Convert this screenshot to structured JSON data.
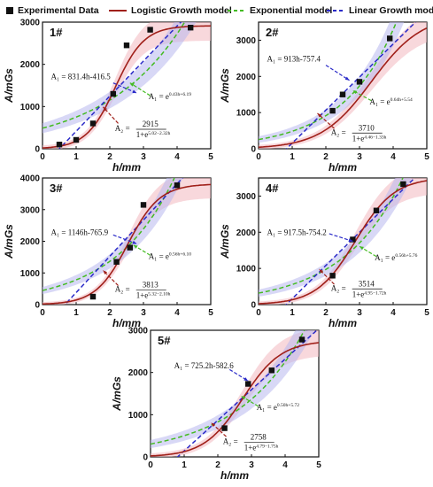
{
  "legend": {
    "experimental": "Experimental Data",
    "logistic": "Logistic Growth model",
    "exponential": "Exponential model",
    "linear": "Linear Growth model"
  },
  "colors": {
    "logistic": "#a0201a",
    "exponential": "#44bb22",
    "linear": "#2a2ac8",
    "points": "#111111",
    "band_red": "#f2b8c0",
    "band_blue": "#b8b8ee"
  },
  "chart_data": [
    {
      "type": "scatter",
      "panel": "1#",
      "xlabel": "h/mm",
      "ylabel": "A/mGs",
      "xlim": [
        0,
        5
      ],
      "ylim": [
        0,
        3000
      ],
      "xticks": [
        0,
        1,
        2,
        3,
        4,
        5
      ],
      "yticks": [
        0,
        1000,
        2000,
        3000
      ],
      "points": [
        [
          0.5,
          100
        ],
        [
          1.0,
          210
        ],
        [
          1.5,
          600
        ],
        [
          2.1,
          1300
        ],
        [
          2.5,
          2450
        ],
        [
          3.2,
          2820
        ],
        [
          4.4,
          2870
        ]
      ],
      "linear_eq": "A₁ = 831.4h-416.5",
      "linear": {
        "slope": 831.4,
        "intercept": -416.5
      },
      "exp_eq_base": "A₁ = e",
      "exp_eq_exp": "0.43h+6.19",
      "exponential": {
        "a": 0.43,
        "b": 6.19
      },
      "log_eq_lhs": "A₂ =",
      "log_eq_num": "2915",
      "log_eq_den": "1+e",
      "log_eq_den_exp": "5.02−2.32h",
      "logistic": {
        "K": 2915,
        "a": 5.02,
        "b": 2.32
      }
    },
    {
      "type": "scatter",
      "panel": "2#",
      "xlabel": "h/mm",
      "ylabel": "A/mGs",
      "xlim": [
        0,
        5
      ],
      "ylim": [
        0,
        3500
      ],
      "xticks": [
        0,
        1,
        2,
        3,
        4,
        5
      ],
      "yticks": [
        0,
        1000,
        2000,
        3000
      ],
      "points": [
        [
          0.5,
          -270
        ],
        [
          2.2,
          1050
        ],
        [
          2.5,
          1500
        ],
        [
          3.0,
          1850
        ],
        [
          3.9,
          3050
        ]
      ],
      "linear_eq": "A₁ = 913h-757.4",
      "linear": {
        "slope": 913,
        "intercept": -757.4
      },
      "exp_eq_base": "A₁ = e",
      "exp_eq_exp": "0.64h+5.54",
      "exponential": {
        "a": 0.64,
        "b": 5.54
      },
      "log_eq_lhs": "A₂ =",
      "log_eq_num": "3710",
      "log_eq_den": "1+e",
      "log_eq_den_exp": "4.46−1.33h",
      "logistic": {
        "K": 3710,
        "a": 4.46,
        "b": 1.33
      }
    },
    {
      "type": "scatter",
      "panel": "3#",
      "xlabel": "h/mm",
      "ylabel": "A/mGs",
      "xlim": [
        0,
        5
      ],
      "ylim": [
        0,
        4000
      ],
      "xticks": [
        0,
        1,
        2,
        3,
        4,
        5
      ],
      "yticks": [
        0,
        1000,
        2000,
        3000,
        4000
      ],
      "points": [
        [
          0.5,
          -100
        ],
        [
          1.5,
          250
        ],
        [
          2.2,
          1350
        ],
        [
          2.6,
          1800
        ],
        [
          3.0,
          3150
        ],
        [
          4.0,
          3770
        ]
      ],
      "linear_eq": "A₁ = 1146h-765.9",
      "linear": {
        "slope": 1146,
        "intercept": -765.9
      },
      "exp_eq_base": "A₁ = e",
      "exp_eq_exp": "0.56h+6.10",
      "exponential": {
        "a": 0.56,
        "b": 6.1
      },
      "log_eq_lhs": "A₂ =",
      "log_eq_num": "3813",
      "log_eq_den": "1+e",
      "log_eq_den_exp": "5.32−2.10h",
      "logistic": {
        "K": 3813,
        "a": 5.32,
        "b": 2.1
      }
    },
    {
      "type": "scatter",
      "panel": "4#",
      "xlabel": "h/mm",
      "ylabel": "A/mGs",
      "xlim": [
        0,
        5
      ],
      "ylim": [
        0,
        3500
      ],
      "xticks": [
        0,
        1,
        2,
        3,
        4,
        5
      ],
      "yticks": [
        0,
        1000,
        2000,
        3000
      ],
      "points": [
        [
          0.5,
          -80
        ],
        [
          2.2,
          800
        ],
        [
          2.8,
          1800
        ],
        [
          3.5,
          2600
        ],
        [
          4.3,
          3330
        ]
      ],
      "linear_eq": "A₁ = 917.5h-754.2",
      "linear": {
        "slope": 917.5,
        "intercept": -754.2
      },
      "exp_eq_base": "A₁ = e",
      "exp_eq_exp": "0.56h+5.76",
      "exponential": {
        "a": 0.56,
        "b": 5.76
      },
      "log_eq_lhs": "A₂ =",
      "log_eq_num": "3514",
      "log_eq_den": "1+e",
      "log_eq_den_exp": "4.95−1.72h",
      "logistic": {
        "K": 3514,
        "a": 4.95,
        "b": 1.72
      }
    },
    {
      "type": "scatter",
      "panel": "5#",
      "xlabel": "h/mm",
      "ylabel": "A/mGs",
      "xlim": [
        0,
        5
      ],
      "ylim": [
        0,
        3000
      ],
      "xticks": [
        0,
        1,
        2,
        3,
        4,
        5
      ],
      "yticks": [
        0,
        1000,
        2000,
        3000
      ],
      "points": [
        [
          0.5,
          -130
        ],
        [
          2.2,
          680
        ],
        [
          2.9,
          1730
        ],
        [
          3.6,
          2050
        ],
        [
          4.5,
          2780
        ]
      ],
      "linear_eq": "A₁ = 725.2h-582.6",
      "linear": {
        "slope": 725.2,
        "intercept": -582.6
      },
      "exp_eq_base": "A₁ = e",
      "exp_eq_exp": "0.50h+5.72",
      "exponential": {
        "a": 0.5,
        "b": 5.72
      },
      "log_eq_lhs": "A₂ =",
      "log_eq_num": "2758",
      "log_eq_den": "1+e",
      "log_eq_den_exp": "4.79−1.75h",
      "logistic": {
        "K": 2758,
        "a": 4.79,
        "b": 1.75
      }
    }
  ]
}
